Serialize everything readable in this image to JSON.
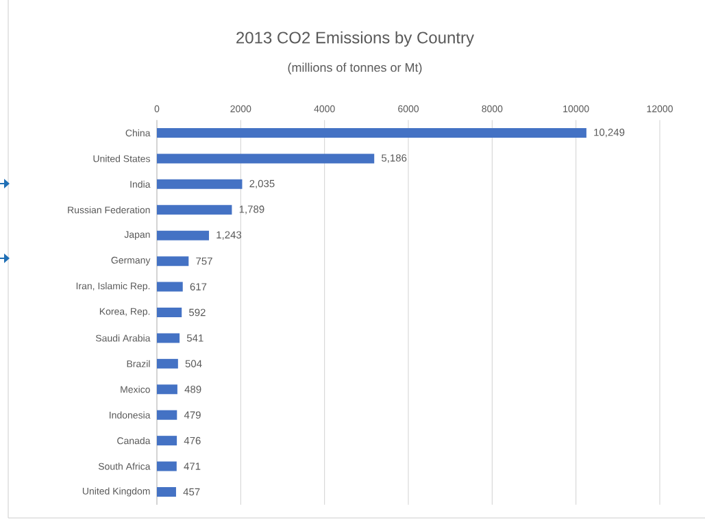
{
  "chart_data": {
    "type": "bar",
    "orientation": "horizontal",
    "title": "2013 CO2 Emissions  by Country",
    "subtitle": "(millions of tonnes or Mt)",
    "categories": [
      "China",
      "United States",
      "India",
      "Russian Federation",
      "Japan",
      "Germany",
      "Iran, Islamic Rep.",
      "Korea, Rep.",
      "Saudi Arabia",
      "Brazil",
      "Mexico",
      "Indonesia",
      "Canada",
      "South Africa",
      "United Kingdom"
    ],
    "values": [
      10249,
      5186,
      2035,
      1789,
      1243,
      757,
      617,
      592,
      541,
      504,
      489,
      479,
      476,
      471,
      457
    ],
    "value_labels": [
      "10,249",
      "5,186",
      "2,035",
      "1,789",
      "1,243",
      "757",
      "617",
      "592",
      "541",
      "504",
      "489",
      "479",
      "476",
      "471",
      "457"
    ],
    "color": "#4472c4",
    "xlim": [
      0,
      12000
    ],
    "xticks": [
      0,
      2000,
      4000,
      6000,
      8000,
      10000,
      12000
    ],
    "grid": "x"
  }
}
